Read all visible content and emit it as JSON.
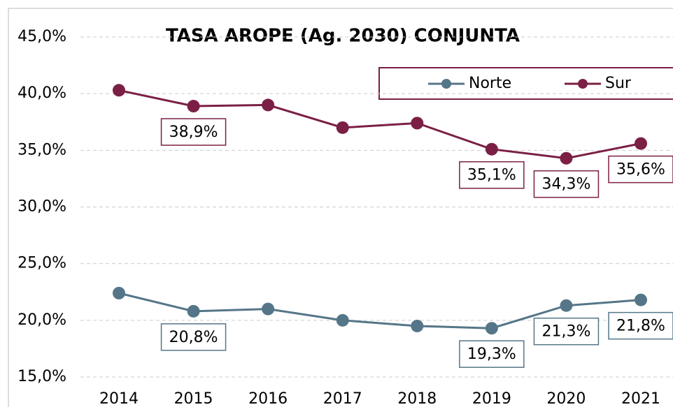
{
  "chart_data": {
    "type": "line",
    "title": "TASA AROPE (Ag. 2030) CONJUNTA",
    "categories": [
      "2014",
      "2015",
      "2016",
      "2017",
      "2018",
      "2019",
      "2020",
      "2021"
    ],
    "series": [
      {
        "name": "Norte",
        "color": "#557688",
        "values": [
          22.4,
          20.8,
          21.0,
          20.0,
          19.5,
          19.3,
          21.3,
          21.8
        ],
        "value_labels": [
          null,
          "20,8%",
          null,
          null,
          null,
          "19,3%",
          "21,3%",
          "21,8%"
        ]
      },
      {
        "name": "Sur",
        "color": "#7b1f45",
        "values": [
          40.3,
          38.9,
          39.0,
          37.0,
          37.4,
          35.1,
          34.3,
          35.6
        ],
        "value_labels": [
          null,
          "38,9%",
          null,
          null,
          null,
          "35,1%",
          "34,3%",
          "35,6%"
        ]
      }
    ],
    "ylim": [
      15,
      45
    ],
    "yticks": [
      {
        "value": 15,
        "label": "15,0%"
      },
      {
        "value": 20,
        "label": "20,0%"
      },
      {
        "value": 25,
        "label": "25,0%"
      },
      {
        "value": 30,
        "label": "30,0%"
      },
      {
        "value": 35,
        "label": "35,0%"
      },
      {
        "value": 40,
        "label": "40,0%"
      },
      {
        "value": 45,
        "label": "45,0%"
      }
    ],
    "grid": true,
    "legend": "top-right"
  }
}
